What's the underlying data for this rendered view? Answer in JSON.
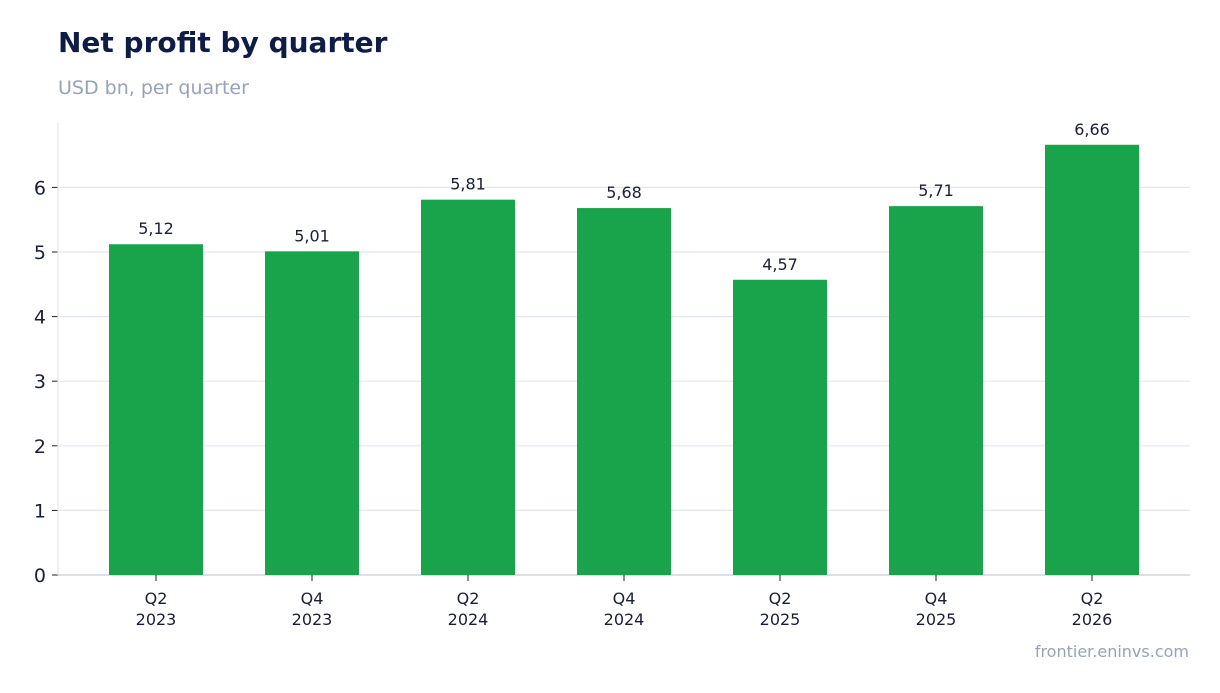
{
  "header": {
    "title": "Net profit by quarter",
    "subtitle": "USD bn, per quarter"
  },
  "footer": {
    "source": "frontier.eninvs.com"
  },
  "colors": {
    "bar": "#19a34a",
    "grid": "#e3e7ee",
    "axis": "#c9ced8",
    "text": "#1a1f36"
  },
  "chart_data": {
    "type": "bar",
    "title": "Net profit by quarter",
    "subtitle": "USD bn, per quarter",
    "xlabel": "",
    "ylabel": "",
    "categories": [
      [
        "Q2",
        "2023"
      ],
      [
        "Q4",
        "2023"
      ],
      [
        "Q2",
        "2024"
      ],
      [
        "Q4",
        "2024"
      ],
      [
        "Q2",
        "2025"
      ],
      [
        "Q4",
        "2025"
      ],
      [
        "Q2",
        "2026"
      ]
    ],
    "values": [
      5.12,
      5.01,
      5.81,
      5.68,
      4.57,
      5.71,
      6.66
    ],
    "value_labels": [
      "5,12",
      "5,01",
      "5,81",
      "5,68",
      "4,57",
      "5,71",
      "6,66"
    ],
    "ylim": [
      0,
      7
    ],
    "yticks": [
      0,
      1,
      2,
      3,
      4,
      5,
      6
    ],
    "grid": true,
    "legend": "none"
  }
}
